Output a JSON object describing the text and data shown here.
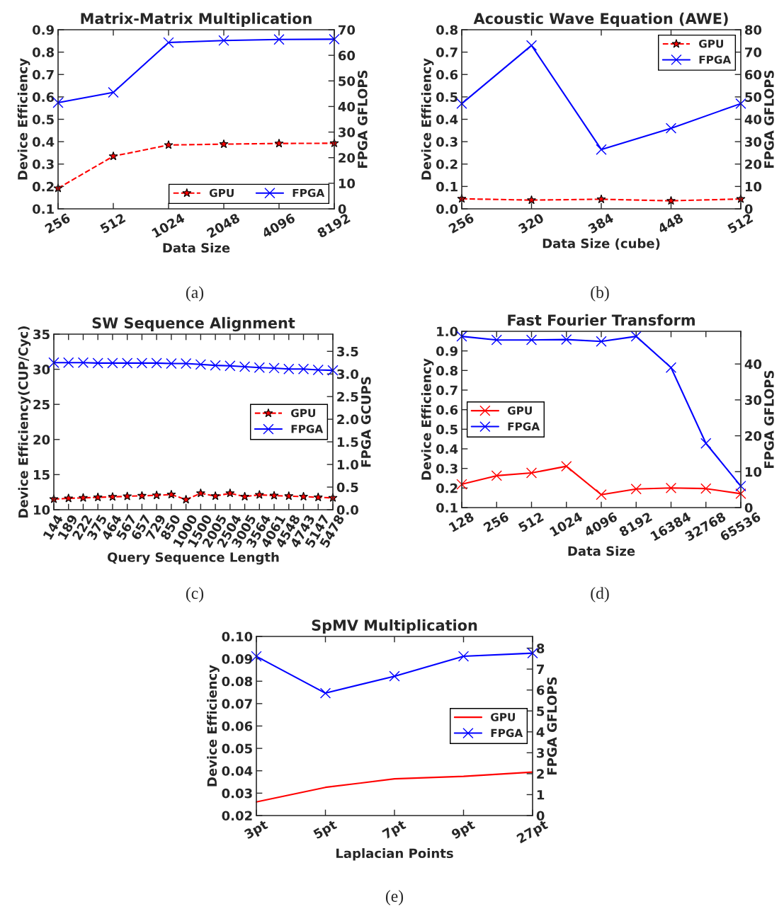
{
  "chart_data": [
    {
      "type": "line",
      "title": "Matrix-Matrix Multiplication",
      "xlabel": "Data Size",
      "ylabel": "Device Efficiency",
      "y2label": "FPGA GFLOPS",
      "annotations": [
        "(a)"
      ],
      "categories": [
        "256",
        "512",
        "1024",
        "2048",
        "4096",
        "8192"
      ],
      "ylim": [
        0.1,
        0.9
      ],
      "yticks": [
        0.1,
        0.2,
        0.3,
        0.4,
        0.5,
        0.6,
        0.7,
        0.8,
        0.9
      ],
      "y2lim": [
        0,
        70
      ],
      "y2ticks": [
        0,
        10,
        20,
        30,
        40,
        50,
        60,
        70
      ],
      "legend": "bottom right",
      "grid": false,
      "series": [
        {
          "name": "GPU",
          "color": "#ff0000",
          "marker": "star",
          "line_style": "dashed",
          "values": [
            0.192,
            0.335,
            0.385,
            0.389,
            0.392,
            0.393
          ]
        },
        {
          "name": "FPGA",
          "color": "#0000ff",
          "marker": "cross",
          "line_style": "solid",
          "axis": "y2",
          "values": [
            41.5,
            45.5,
            65,
            65.8,
            66.2,
            66.3
          ]
        }
      ]
    },
    {
      "type": "line",
      "title": "Acoustic Wave Equation (AWE)",
      "xlabel": "Data Size (cube)",
      "ylabel": "Device Efficiency",
      "y2label": "FPGA GFLOPS",
      "annotations": [
        "(b)"
      ],
      "categories": [
        "256",
        "320",
        "384",
        "448",
        "512"
      ],
      "ylim": [
        0.0,
        0.8
      ],
      "yticks": [
        {
          "value": 0,
          "label": "0.0"
        },
        0.1,
        0.2,
        0.3,
        0.4,
        0.5,
        0.6,
        0.7,
        0.8
      ],
      "y2lim": [
        0,
        80
      ],
      "y2ticks": [
        0,
        10,
        20,
        30,
        40,
        50,
        60,
        70,
        80
      ],
      "legend": "top right",
      "grid": false,
      "series": [
        {
          "name": "GPU",
          "color": "#ff0000",
          "marker": "star",
          "line_style": "dashed",
          "values": [
            0.045,
            0.039,
            0.043,
            0.036,
            0.044
          ]
        },
        {
          "name": "FPGA",
          "color": "#0000ff",
          "marker": "cross",
          "line_style": "solid",
          "axis": "y2",
          "values": [
            47,
            73,
            26.5,
            36,
            47
          ]
        }
      ]
    },
    {
      "type": "line",
      "title": "SW Sequence Alignment",
      "xlabel": "Query Sequence Length",
      "ylabel": "Device Efficiency(CUP/Cyc)",
      "y2label": "FPGA GCUPS",
      "annotations": [
        "(c)"
      ],
      "categories": [
        "144",
        "189",
        "222",
        "375",
        "464",
        "567",
        "657",
        "729",
        "850",
        "1000",
        "1500",
        "2005",
        "2504",
        "3005",
        "3564",
        "4061",
        "4548",
        "4743",
        "5147",
        "5478"
      ],
      "ylim": [
        10,
        35
      ],
      "yticks": [
        10,
        15,
        20,
        25,
        30,
        35
      ],
      "y2lim": [
        0,
        3.88
      ],
      "y2ticks": [
        {
          "value": 0,
          "label": "0.0"
        },
        0.5,
        {
          "value": 1,
          "label": "1.0"
        },
        1.5,
        {
          "value": 2,
          "label": "2.0"
        },
        2.5,
        {
          "value": 3,
          "label": "3.0"
        },
        3.5
      ],
      "legend": "right",
      "grid": false,
      "series": [
        {
          "name": "GPU",
          "color": "#ff0000",
          "marker": "star",
          "line_style": "dashed",
          "values": [
            11.51,
            11.62,
            11.69,
            11.76,
            11.83,
            11.91,
            11.98,
            12.05,
            12.16,
            11.44,
            12.34,
            11.94,
            12.34,
            11.87,
            12.12,
            12.01,
            11.94,
            11.87,
            11.76,
            11.69
          ]
        },
        {
          "name": "FPGA",
          "color": "#0000ff",
          "marker": "cross",
          "line_style": "solid",
          "axis": "y2",
          "values": [
            3.25,
            3.25,
            3.25,
            3.24,
            3.24,
            3.24,
            3.24,
            3.24,
            3.23,
            3.23,
            3.21,
            3.19,
            3.18,
            3.16,
            3.14,
            3.13,
            3.11,
            3.11,
            3.09,
            3.08
          ]
        }
      ]
    },
    {
      "type": "line",
      "title": "Fast Fourier Transform",
      "xlabel": "Data Size",
      "ylabel": "Device Efficiency",
      "y2label": "FPGA GFLOPS",
      "annotations": [
        "(d)"
      ],
      "categories": [
        "128",
        "256",
        "512",
        "1024",
        "4096",
        "8192",
        "16384",
        "32768",
        "65536"
      ],
      "ylim": [
        0.1,
        1.0
      ],
      "yticks": [
        0.1,
        0.2,
        0.3,
        0.4,
        0.5,
        0.6,
        0.7,
        0.8,
        0.9,
        {
          "value": 1,
          "label": "1.0"
        }
      ],
      "y2lim": [
        0,
        49.1
      ],
      "y2ticks": [
        0,
        10,
        20,
        30,
        40
      ],
      "legend": "left",
      "grid": false,
      "series": [
        {
          "name": "GPU",
          "color": "#ff0000",
          "marker": "cross",
          "line_style": "solid",
          "values": [
            0.219,
            0.263,
            0.277,
            0.311,
            0.166,
            0.195,
            0.2,
            0.197,
            0.171
          ]
        },
        {
          "name": "FPGA",
          "color": "#0000ff",
          "marker": "cross",
          "line_style": "solid",
          "axis": "y2",
          "values": [
            47.7,
            46.7,
            46.7,
            46.8,
            46.3,
            47.7,
            39.0,
            17.9,
            6.0
          ]
        }
      ]
    },
    {
      "type": "line",
      "title": "SpMV Multiplication",
      "xlabel": "Laplacian Points",
      "ylabel": "Device Efficiency",
      "y2label": "FPGA GFLOPS",
      "annotations": [
        "(e)"
      ],
      "categories": [
        "3pt",
        "5pt",
        "7pt",
        "9pt",
        "27pt"
      ],
      "ylim": [
        0.02,
        0.1
      ],
      "yticks": [
        0.02,
        0.03,
        0.04,
        0.05,
        0.06,
        0.07,
        0.08,
        0.09,
        {
          "value": 0.1,
          "label": "0.10"
        }
      ],
      "y2lim": [
        0,
        8.56
      ],
      "y2ticks": [
        0,
        1,
        2,
        3,
        4,
        5,
        6,
        7,
        8
      ],
      "legend": "right",
      "grid": false,
      "series": [
        {
          "name": "GPU",
          "color": "#ff0000",
          "marker": "none",
          "line_style": "solid",
          "values": [
            0.0261,
            0.0326,
            0.0364,
            0.0375,
            0.0394
          ]
        },
        {
          "name": "FPGA",
          "color": "#0000ff",
          "marker": "cross",
          "line_style": "solid",
          "axis": "y2",
          "values": [
            7.61,
            5.85,
            6.66,
            7.61,
            7.76
          ]
        }
      ]
    }
  ]
}
